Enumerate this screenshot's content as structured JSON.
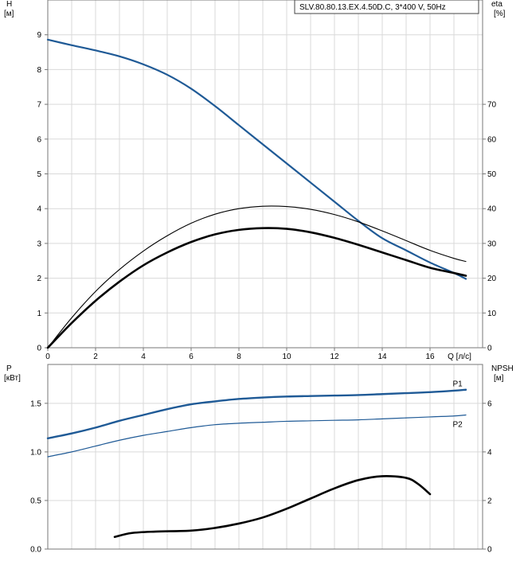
{
  "colors": {
    "grid": "#d9d9d9",
    "frame": "#777777",
    "head_curve": "#1f5a96",
    "efficiency_curve": "#000000",
    "p1": "#1f5a96",
    "p2": "#1f5a96",
    "npsh": "#000000",
    "text": "#000000",
    "legend_border": "#444444"
  },
  "chart_data": [
    {
      "id": "upper-chart",
      "type": "line",
      "legend_text": "SLV.80.80.13.EX.4.50D.C, 3*400 V, 50Hz",
      "x_axis": {
        "label": "Q [л/с]",
        "ticks": [
          0,
          2,
          4,
          6,
          8,
          10,
          12,
          14,
          16
        ],
        "xlim": [
          0,
          18.2
        ]
      },
      "left_axis": {
        "label_top": "H",
        "label_unit": "[м]",
        "ticks": [
          0,
          1,
          2,
          3,
          4,
          5,
          6,
          7,
          8,
          9
        ],
        "ylim": [
          0,
          10
        ]
      },
      "right_axis": {
        "label_top": "eta",
        "label_unit": "[%]",
        "ticks": [
          0,
          10,
          20,
          30,
          40,
          50,
          60,
          70
        ],
        "ylim": [
          0,
          100
        ]
      },
      "series": [
        {
          "axis": "left",
          "points": [
            [
              0,
              8.86
            ],
            [
              1,
              8.7
            ],
            [
              2,
              8.55
            ],
            [
              3,
              8.38
            ],
            [
              4,
              8.15
            ],
            [
              5,
              7.85
            ],
            [
              6,
              7.45
            ],
            [
              7,
              6.95
            ],
            [
              8,
              6.4
            ],
            [
              9,
              5.85
            ],
            [
              10,
              5.3
            ],
            [
              11,
              4.75
            ],
            [
              12,
              4.2
            ],
            [
              13,
              3.65
            ],
            [
              14,
              3.15
            ],
            [
              15,
              2.8
            ],
            [
              16,
              2.45
            ],
            [
              17,
              2.15
            ],
            [
              17.5,
              1.98
            ]
          ]
        },
        {
          "axis": "right",
          "points": [
            [
              0,
              0
            ],
            [
              1,
              8.6
            ],
            [
              2,
              16.2
            ],
            [
              3,
              22.5
            ],
            [
              4,
              27.8
            ],
            [
              5,
              32.2
            ],
            [
              6,
              35.8
            ],
            [
              7,
              38.4
            ],
            [
              8,
              40.0
            ],
            [
              9,
              40.7
            ],
            [
              10,
              40.6
            ],
            [
              11,
              39.8
            ],
            [
              12,
              38.3
            ],
            [
              13,
              36.2
            ],
            [
              14,
              33.6
            ],
            [
              15,
              30.8
            ],
            [
              16,
              28.0
            ],
            [
              17,
              25.7
            ],
            [
              17.5,
              24.8
            ]
          ]
        },
        {
          "axis": "right",
          "points": [
            [
              0,
              0
            ],
            [
              1,
              7.1
            ],
            [
              2,
              13.5
            ],
            [
              3,
              19.0
            ],
            [
              4,
              23.7
            ],
            [
              5,
              27.4
            ],
            [
              6,
              30.4
            ],
            [
              7,
              32.6
            ],
            [
              8,
              33.9
            ],
            [
              9,
              34.4
            ],
            [
              10,
              34.2
            ],
            [
              11,
              33.2
            ],
            [
              12,
              31.6
            ],
            [
              13,
              29.6
            ],
            [
              14,
              27.4
            ],
            [
              15,
              25.2
            ],
            [
              16,
              23.0
            ],
            [
              17,
              21.5
            ],
            [
              17.5,
              20.7
            ]
          ]
        }
      ]
    },
    {
      "id": "lower-chart",
      "type": "line",
      "x_axis": {
        "xlim": [
          0,
          18.2
        ]
      },
      "left_axis": {
        "label_top": "P",
        "label_unit": "[кВт]",
        "ticks": [
          0.0,
          0.5,
          1.0,
          1.5
        ],
        "tick_labels": [
          "0.0",
          "0.5",
          "1.0",
          "1.5"
        ],
        "ylim": [
          0,
          1.9
        ]
      },
      "right_axis": {
        "label_top": "NPSH",
        "label_unit": "[м]",
        "ticks": [
          0,
          2,
          4,
          6
        ],
        "ylim": [
          0,
          7.6
        ]
      },
      "series": [
        {
          "name": "P1",
          "axis": "left",
          "points": [
            [
              0,
              1.14
            ],
            [
              1,
              1.19
            ],
            [
              2,
              1.25
            ],
            [
              3,
              1.32
            ],
            [
              4,
              1.38
            ],
            [
              5,
              1.44
            ],
            [
              6,
              1.49
            ],
            [
              7,
              1.52
            ],
            [
              8,
              1.545
            ],
            [
              9,
              1.56
            ],
            [
              10,
              1.57
            ],
            [
              11,
              1.575
            ],
            [
              12,
              1.58
            ],
            [
              13,
              1.585
            ],
            [
              14,
              1.595
            ],
            [
              15,
              1.605
            ],
            [
              16,
              1.615
            ],
            [
              17,
              1.63
            ],
            [
              17.5,
              1.64
            ]
          ]
        },
        {
          "name": "P2",
          "axis": "left",
          "points": [
            [
              0,
              0.95
            ],
            [
              1,
              1.0
            ],
            [
              2,
              1.06
            ],
            [
              3,
              1.12
            ],
            [
              4,
              1.17
            ],
            [
              5,
              1.21
            ],
            [
              6,
              1.25
            ],
            [
              7,
              1.28
            ],
            [
              8,
              1.295
            ],
            [
              9,
              1.305
            ],
            [
              10,
              1.315
            ],
            [
              11,
              1.32
            ],
            [
              12,
              1.325
            ],
            [
              13,
              1.33
            ],
            [
              14,
              1.34
            ],
            [
              15,
              1.35
            ],
            [
              16,
              1.36
            ],
            [
              17,
              1.37
            ],
            [
              17.5,
              1.38
            ]
          ]
        },
        {
          "axis": "right",
          "points": [
            [
              2.8,
              0.5
            ],
            [
              3.5,
              0.66
            ],
            [
              4.5,
              0.72
            ],
            [
              6,
              0.76
            ],
            [
              7,
              0.87
            ],
            [
              8,
              1.05
            ],
            [
              9,
              1.3
            ],
            [
              10,
              1.66
            ],
            [
              11,
              2.08
            ],
            [
              12,
              2.5
            ],
            [
              13,
              2.84
            ],
            [
              14,
              3.0
            ],
            [
              15,
              2.93
            ],
            [
              15.5,
              2.68
            ],
            [
              16,
              2.26
            ]
          ]
        }
      ]
    }
  ]
}
